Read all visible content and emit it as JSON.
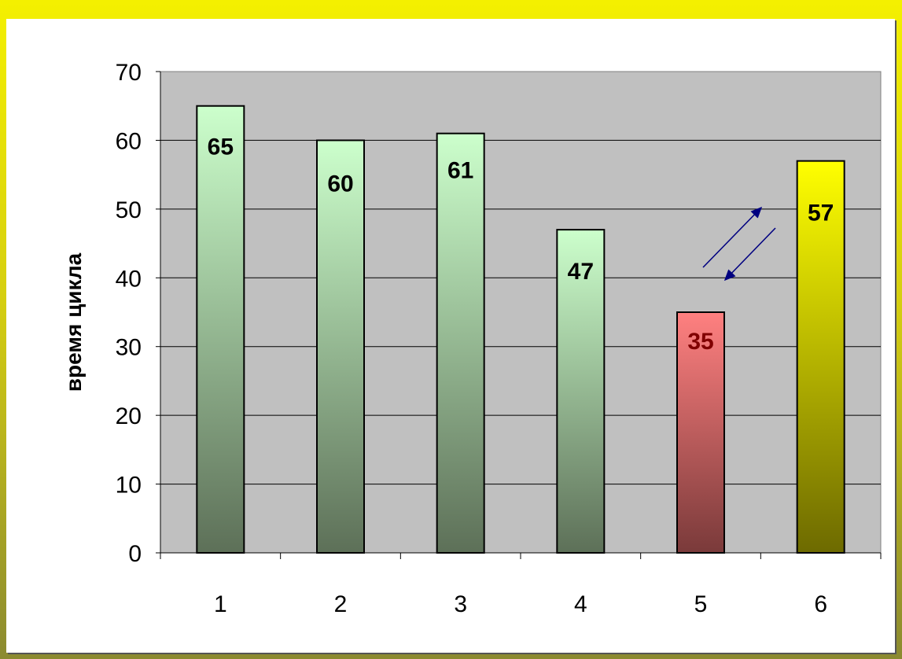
{
  "chart_data": {
    "type": "bar",
    "categories": [
      "1",
      "2",
      "3",
      "4",
      "5",
      "6"
    ],
    "values": [
      65,
      60,
      61,
      47,
      35,
      57
    ],
    "data_labels": [
      "65",
      "60",
      "61",
      "47",
      "35",
      "57"
    ],
    "title": "",
    "xlabel": "",
    "ylabel": "время цикла",
    "ylim": [
      0,
      70
    ],
    "yticks": [
      0,
      10,
      20,
      30,
      40,
      50,
      60,
      70
    ],
    "grid": true,
    "legend": "none",
    "colors": {
      "plot_background": "#c0c0c0",
      "bars_default": [
        "#ccffcc",
        "#5d7058"
      ],
      "bar_5": [
        "#ff8080",
        "#7a3a3a"
      ],
      "bar_6": [
        "#ffff00",
        "#6d6a00"
      ],
      "label_default": "#000000",
      "label_bar_5": "#800000",
      "arrows": "#000080"
    },
    "annotations": [
      "double arrow between bars 5 and 6"
    ]
  }
}
